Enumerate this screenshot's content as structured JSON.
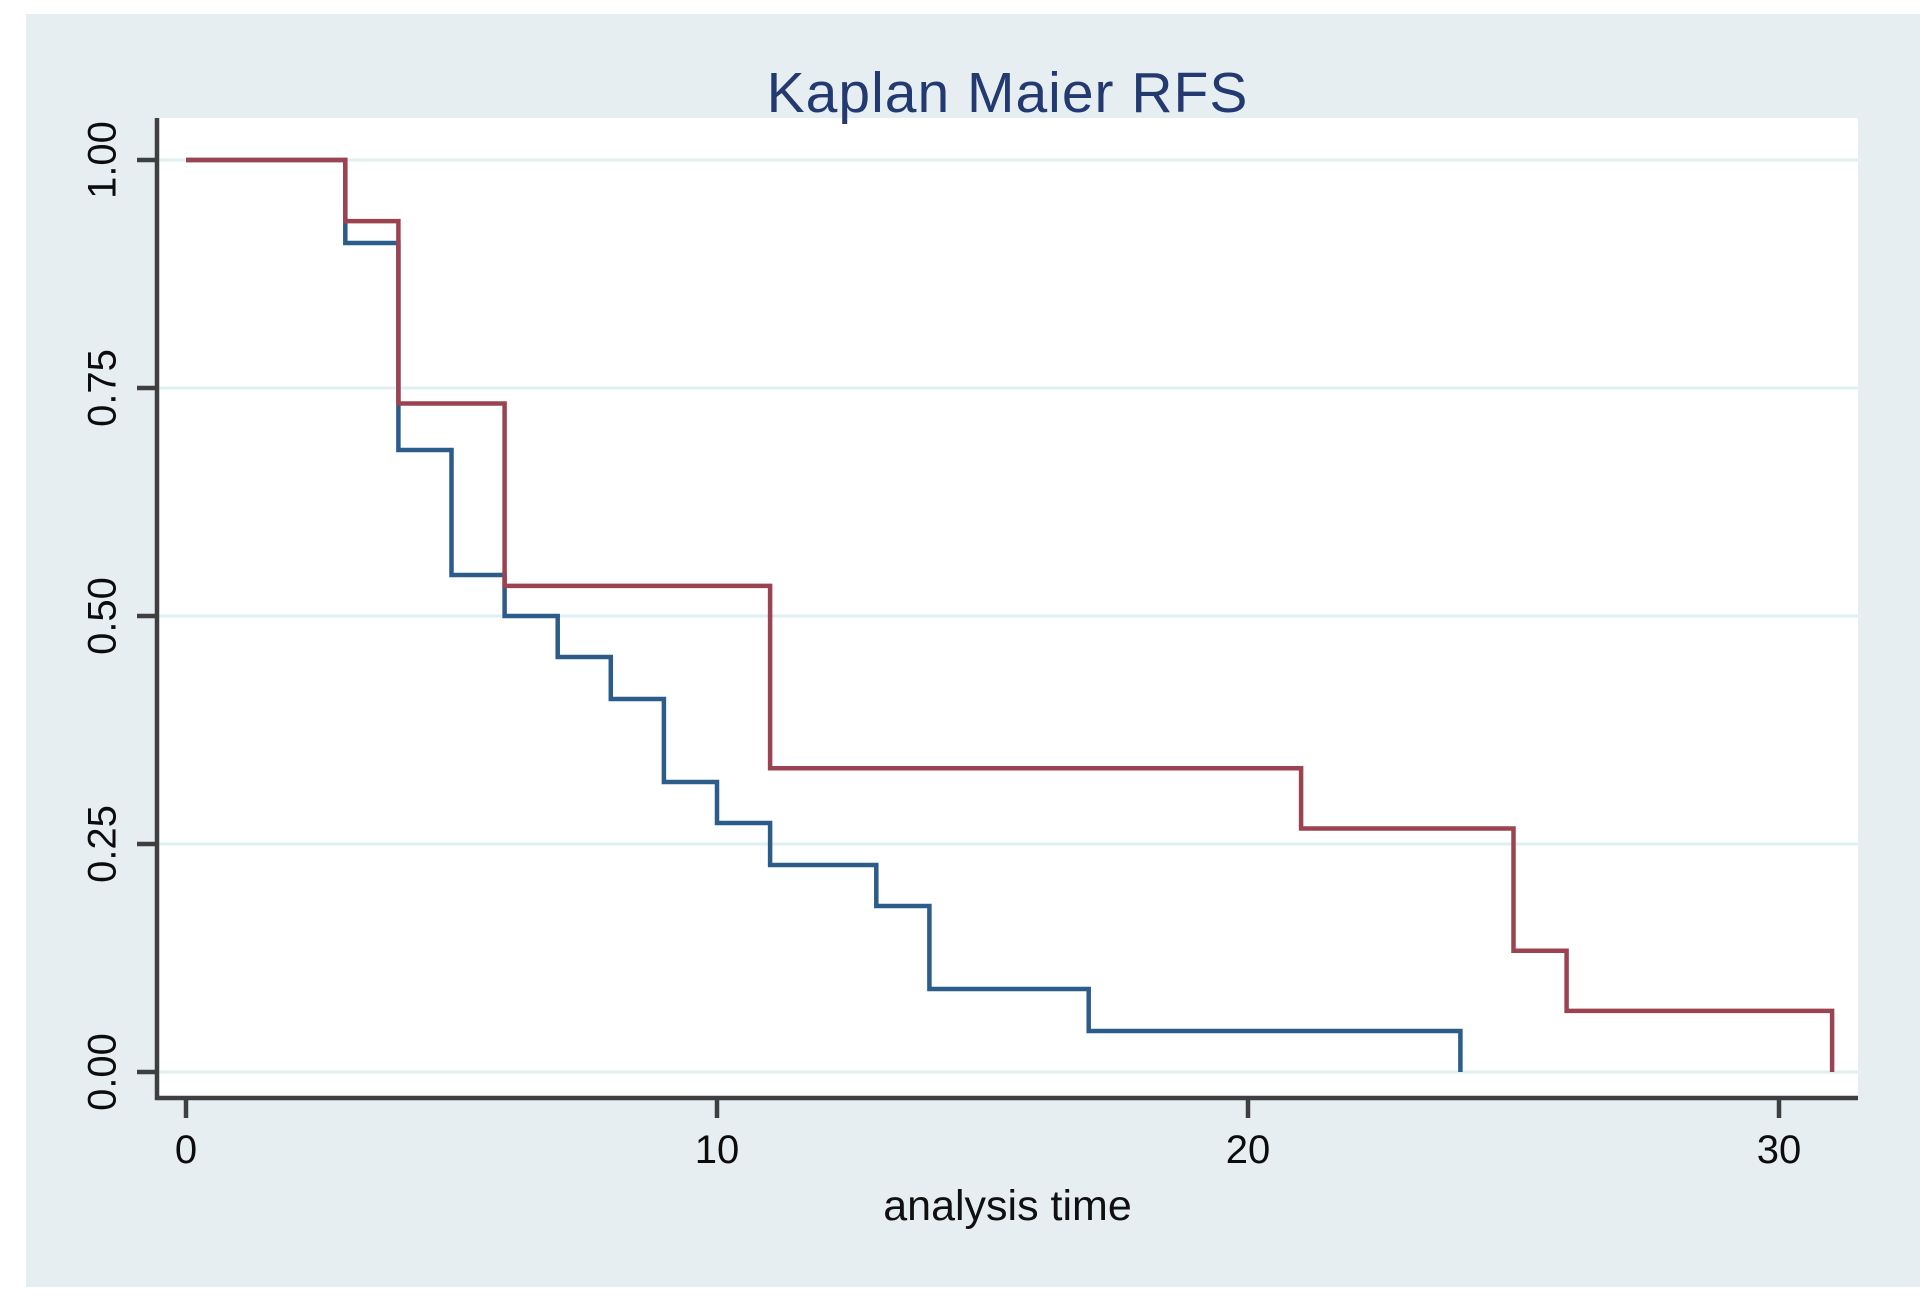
{
  "page": {
    "background": "#ffffff",
    "panel_background": "#e7eef1",
    "plot_background": "#ffffff",
    "grid_color": "#dff0f1",
    "axis_color": "#3f3f3f",
    "tick_label_color": "#0c0c0c",
    "title_color": "#233a70"
  },
  "chart_data": {
    "type": "line",
    "subtype": "kaplan-meier-step",
    "title": "Kaplan Maier RFS",
    "xlabel": "analysis time",
    "ylabel": "",
    "xlim": [
      -0.55,
      31.5
    ],
    "ylim": [
      -0.03,
      1.05
    ],
    "grid": "horizontal",
    "legend": "none",
    "x_ticks": [
      {
        "label": "0",
        "value": 0
      },
      {
        "label": "10",
        "value": 10
      },
      {
        "label": "20",
        "value": 20
      },
      {
        "label": "30",
        "value": 30
      }
    ],
    "y_ticks": [
      {
        "label": "0.00",
        "value": 0
      },
      {
        "label": "0.25",
        "value": 0.25
      },
      {
        "label": "0.50",
        "value": 0.5
      },
      {
        "label": "0.75",
        "value": 0.75
      },
      {
        "label": "1.00",
        "value": 1
      }
    ],
    "series": [
      {
        "name": "group-1-navy",
        "color": "#2b5c8a",
        "points": [
          [
            0,
            1.0
          ],
          [
            3,
            0.909
          ],
          [
            4,
            0.682
          ],
          [
            5,
            0.545
          ],
          [
            6,
            0.5
          ],
          [
            7,
            0.455
          ],
          [
            8,
            0.409
          ],
          [
            9,
            0.318
          ],
          [
            10,
            0.273
          ],
          [
            11,
            0.227
          ],
          [
            13,
            0.182
          ],
          [
            14,
            0.091
          ],
          [
            17,
            0.045
          ],
          [
            24,
            0.0
          ]
        ]
      },
      {
        "name": "group-2-maroon",
        "color": "#9c4351",
        "points": [
          [
            0,
            1.0
          ],
          [
            3,
            0.933
          ],
          [
            4,
            0.733
          ],
          [
            6,
            0.533
          ],
          [
            11,
            0.333
          ],
          [
            21,
            0.267
          ],
          [
            25,
            0.133
          ],
          [
            26,
            0.067
          ],
          [
            31,
            0.0
          ]
        ]
      }
    ]
  }
}
